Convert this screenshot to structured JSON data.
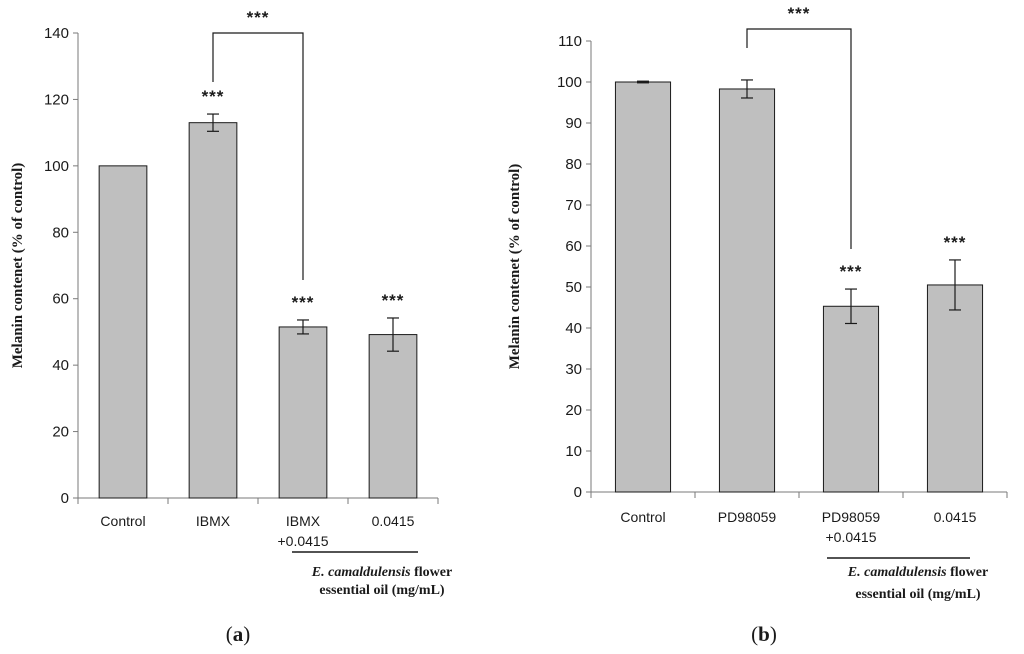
{
  "chart_data": [
    {
      "type": "bar",
      "panel_label": "a",
      "ylabel": "Melanin contenet (% of control)",
      "ylim": [
        0,
        140
      ],
      "yticks": [
        0,
        20,
        40,
        60,
        80,
        100,
        120,
        140
      ],
      "categories": [
        {
          "line1": "Control",
          "line2": ""
        },
        {
          "line1": "IBMX",
          "line2": ""
        },
        {
          "line1": "IBMX",
          "line2": "+0.0415"
        },
        {
          "line1": "0.0415",
          "line2": ""
        }
      ],
      "values": [
        100,
        113,
        51.5,
        49.2
      ],
      "errors": [
        0,
        2.6,
        2.1,
        5.0
      ],
      "significance": [
        "",
        "***",
        "***",
        "***"
      ],
      "comparison": {
        "from": 1,
        "to": 2,
        "label": "***"
      },
      "footnote": {
        "italic": "E. camaldulensis",
        "rest": " flower",
        "line2": "essential oil (mg/mL)"
      }
    },
    {
      "type": "bar",
      "panel_label": "b",
      "ylabel": "Melanin contenet (% of control)",
      "ylim": [
        0,
        110
      ],
      "yticks": [
        0,
        10,
        20,
        30,
        40,
        50,
        60,
        70,
        80,
        90,
        100,
        110
      ],
      "categories": [
        {
          "line1": "Control",
          "line2": ""
        },
        {
          "line1": "PD98059",
          "line2": ""
        },
        {
          "line1": "PD98059",
          "line2": "+0.0415"
        },
        {
          "line1": "0.0415",
          "line2": ""
        }
      ],
      "values": [
        100,
        98.3,
        45.3,
        50.5
      ],
      "errors": [
        0.2,
        2.2,
        4.2,
        6.1
      ],
      "significance": [
        "",
        "",
        "***",
        "***"
      ],
      "comparison": {
        "from": 1,
        "to": 2,
        "label": "***"
      },
      "footnote": {
        "italic": "E. camaldulensis",
        "rest": " flower",
        "line2": "essential oil (mg/mL)"
      }
    }
  ]
}
